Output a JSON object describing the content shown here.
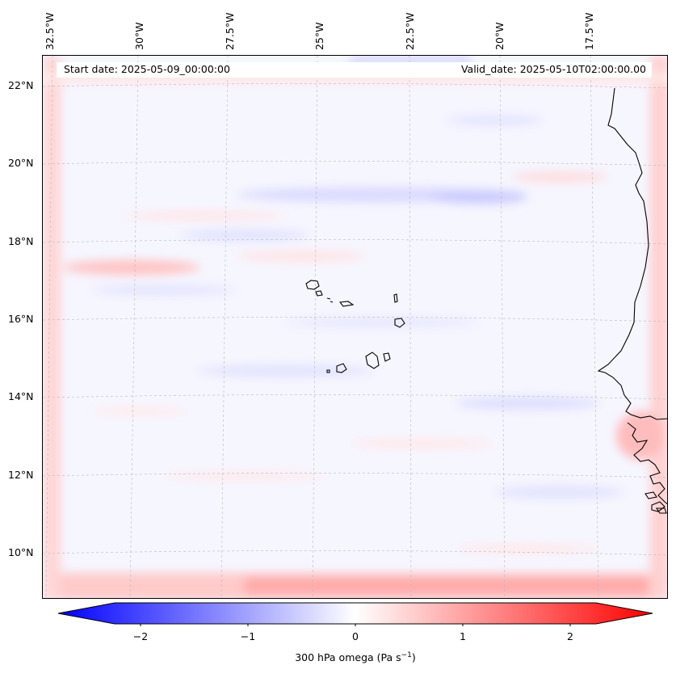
{
  "map": {
    "start_label": "Start date: 2025-05-09_00:00:00",
    "valid_label": "Valid_date: 2025-05-10T02:00:00.00",
    "lon_labels": [
      "32.5°W",
      "30°W",
      "27.5°W",
      "25°W",
      "22.5°W",
      "20°W",
      "17.5°W"
    ],
    "lat_labels": [
      "22°N",
      "20°N",
      "18°N",
      "16°N",
      "14°N",
      "12°N",
      "10°N"
    ]
  },
  "colorbar": {
    "ticks": [
      "−2",
      "−1",
      "0",
      "1",
      "2"
    ],
    "label_main": "300 hPa omega (Pa s",
    "label_sup": "−1",
    "label_end": ")",
    "min_color": "#0000ff",
    "max_color": "#ff0000"
  }
}
